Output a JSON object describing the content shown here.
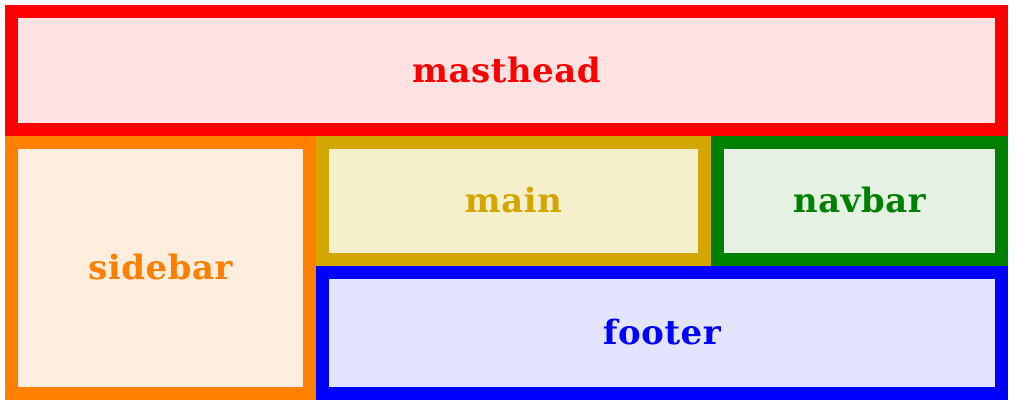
{
  "regions": [
    {
      "id": "masthead",
      "label": "masthead",
      "border": "#ff0000",
      "fill": "#ffe3e3",
      "text": "#ff0000"
    },
    {
      "id": "sidebar",
      "label": "sidebar",
      "border": "#ff8000",
      "fill": "#ffeedd",
      "text": "#ff8000"
    },
    {
      "id": "main",
      "label": "main",
      "border": "#d4a600",
      "fill": "#f6efcc",
      "text": "#d4a600"
    },
    {
      "id": "navbar",
      "label": "navbar",
      "border": "#008000",
      "fill": "#e5f2e3",
      "text": "#008000"
    },
    {
      "id": "footer",
      "label": "footer",
      "border": "#0000ff",
      "fill": "#e3e4ff",
      "text": "#0000ff"
    }
  ]
}
